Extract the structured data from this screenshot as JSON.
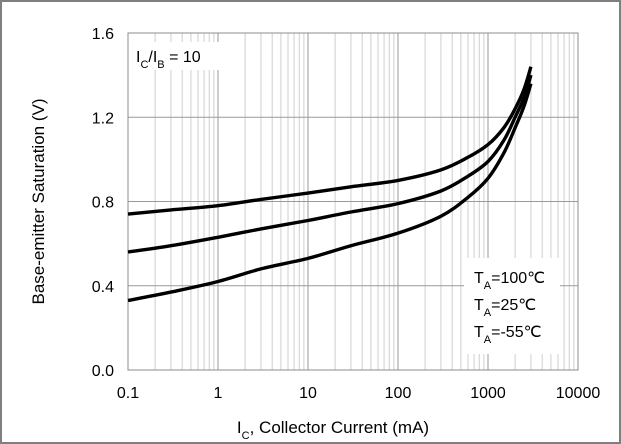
{
  "chart_data": {
    "type": "line",
    "xscale": "log",
    "xlabel": {
      "main": "I",
      "sub": "C",
      "rest": ", Collector Current (mA)"
    },
    "ylabel": "Base-emitter  Saturation (V)",
    "xlim": [
      0.1,
      10000
    ],
    "ylim": [
      0.0,
      1.6
    ],
    "x_ticks": [
      "0.1",
      "1",
      "10",
      "100",
      "1000",
      "10000"
    ],
    "y_ticks": [
      "0.0",
      "0.4",
      "0.8",
      "1.2",
      "1.6"
    ],
    "grid": true,
    "condition": {
      "main": "I",
      "sub1": "C",
      "mid": "/I",
      "sub2": "B",
      "rest": " = 10"
    },
    "legend": [
      {
        "main": "T",
        "sub": "A",
        "rest": "=100℃"
      },
      {
        "main": "T",
        "sub": "A",
        "rest": "=25℃"
      },
      {
        "main": "T",
        "sub": "A",
        "rest": "=-55℃"
      }
    ],
    "series": [
      {
        "points": [
          [
            0.1,
            0.74
          ],
          [
            0.3,
            0.76
          ],
          [
            1,
            0.78
          ],
          [
            3,
            0.81
          ],
          [
            10,
            0.84
          ],
          [
            30,
            0.87
          ],
          [
            100,
            0.9
          ],
          [
            300,
            0.95
          ],
          [
            600,
            1.01
          ],
          [
            1000,
            1.07
          ],
          [
            1500,
            1.15
          ],
          [
            2000,
            1.24
          ],
          [
            2500,
            1.33
          ],
          [
            3000,
            1.44
          ]
        ]
      },
      {
        "points": [
          [
            0.1,
            0.56
          ],
          [
            0.3,
            0.59
          ],
          [
            1,
            0.63
          ],
          [
            3,
            0.67
          ],
          [
            10,
            0.71
          ],
          [
            30,
            0.75
          ],
          [
            100,
            0.79
          ],
          [
            300,
            0.85
          ],
          [
            600,
            0.92
          ],
          [
            1000,
            0.99
          ],
          [
            1500,
            1.09
          ],
          [
            2000,
            1.2
          ],
          [
            2500,
            1.29
          ],
          [
            3000,
            1.4
          ]
        ]
      },
      {
        "points": [
          [
            0.1,
            0.33
          ],
          [
            0.3,
            0.37
          ],
          [
            1,
            0.42
          ],
          [
            3,
            0.48
          ],
          [
            10,
            0.53
          ],
          [
            30,
            0.59
          ],
          [
            100,
            0.65
          ],
          [
            300,
            0.73
          ],
          [
            600,
            0.82
          ],
          [
            1000,
            0.91
          ],
          [
            1500,
            1.03
          ],
          [
            2000,
            1.15
          ],
          [
            2500,
            1.25
          ],
          [
            3000,
            1.36
          ]
        ]
      }
    ]
  }
}
